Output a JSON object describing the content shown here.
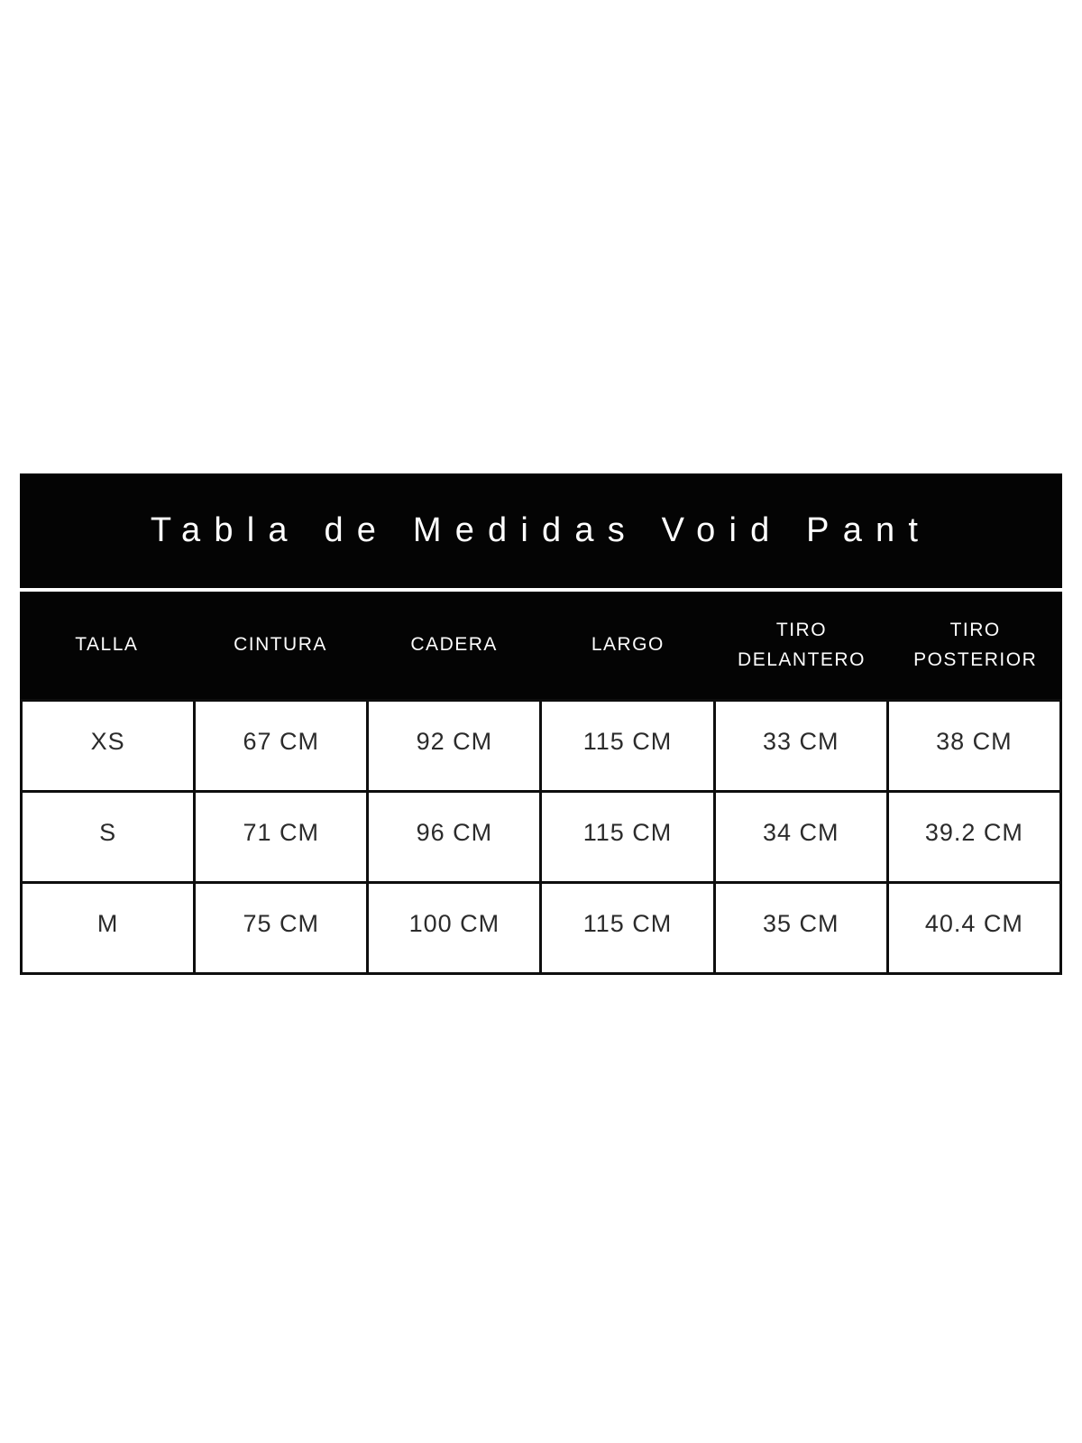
{
  "page": {
    "background": "#ffffff"
  },
  "colors": {
    "bar_background": "#000000",
    "bar_text": "#ffffff",
    "grid_border": "#0e0e0e",
    "cell_text": "#2b2b2b"
  },
  "title_bar": {
    "title": "Tabla de Medidas Void Pant"
  },
  "size_table": {
    "headers": [
      "TALLA",
      "CINTURA",
      "CADERA",
      "LARGO",
      "TIRO DELANTERO",
      "TIRO POSTERIOR"
    ],
    "rows": [
      [
        "XS",
        "67 CM",
        "92 CM",
        "115 CM",
        "33 CM",
        "38 CM"
      ],
      [
        "S",
        "71 CM",
        "96 CM",
        "115 CM",
        "34 CM",
        "39.2 CM"
      ],
      [
        "M",
        "75 CM",
        "100 CM",
        "115 CM",
        "35 CM",
        "40.4 CM"
      ]
    ]
  },
  "chart_data": {
    "type": "table",
    "title": "Tabla de Medidas Void Pant",
    "columns": [
      "TALLA",
      "CINTURA",
      "CADERA",
      "LARGO",
      "TIRO DELANTERO",
      "TIRO POSTERIOR"
    ],
    "rows": [
      {
        "talla": "XS",
        "cintura_cm": 67,
        "cadera_cm": 92,
        "largo_cm": 115,
        "tiro_delantero_cm": 33,
        "tiro_posterior_cm": 38
      },
      {
        "talla": "S",
        "cintura_cm": 71,
        "cadera_cm": 96,
        "largo_cm": 115,
        "tiro_delantero_cm": 34,
        "tiro_posterior_cm": 39.2
      },
      {
        "talla": "M",
        "cintura_cm": 75,
        "cadera_cm": 100,
        "largo_cm": 115,
        "tiro_delantero_cm": 35,
        "tiro_posterior_cm": 40.4
      }
    ],
    "units": "CM",
    "layout": "title bar on black, header row on black, 6 equal columns, 3 data rows with black grid borders"
  }
}
